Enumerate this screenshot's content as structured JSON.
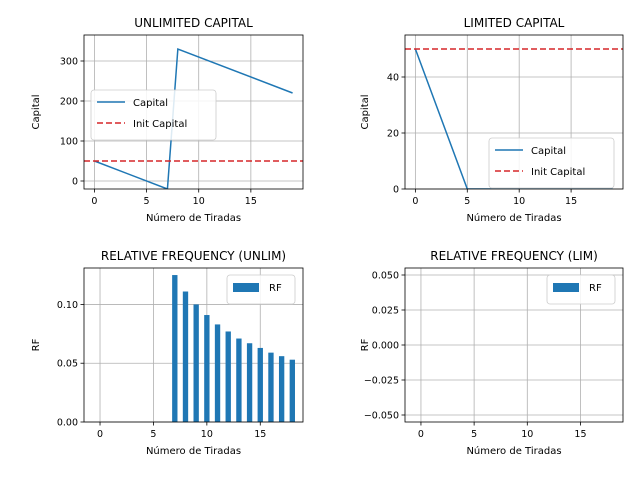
{
  "chart_data": [
    {
      "type": "line",
      "title": "UNLIMITED CAPITAL",
      "xlabel": "Número de Tiradas",
      "ylabel": "Capital",
      "xlim": [
        -1,
        20
      ],
      "ylim": [
        -20,
        365
      ],
      "xticks": [
        "0",
        "5",
        "10",
        "15"
      ],
      "yticks": [
        "0",
        "100",
        "200",
        "300"
      ],
      "grid": true,
      "legend_position": "center-left",
      "series": [
        {
          "name": "Capital",
          "color": "#1f77b4",
          "style": "solid",
          "x": [
            0,
            7,
            8,
            19
          ],
          "y": [
            50,
            -20,
            330,
            220
          ]
        },
        {
          "name": "Init Capital",
          "color": "#d62728",
          "style": "dashed",
          "hline": 50
        }
      ]
    },
    {
      "type": "line",
      "title": "LIMITED CAPITAL",
      "xlabel": "Número de Tiradas",
      "ylabel": "Capital",
      "xlim": [
        -1,
        20
      ],
      "ylim": [
        0,
        55
      ],
      "xticks": [
        "0",
        "5",
        "10",
        "15"
      ],
      "yticks": [
        "0",
        "20",
        "40"
      ],
      "grid": true,
      "legend_position": "lower-right",
      "series": [
        {
          "name": "Capital",
          "color": "#1f77b4",
          "style": "solid",
          "x": [
            0,
            5,
            19
          ],
          "y": [
            50,
            0,
            0
          ]
        },
        {
          "name": "Init Capital",
          "color": "#d62728",
          "style": "dashed",
          "hline": 50
        }
      ]
    },
    {
      "type": "bar",
      "title": "RELATIVE FREQUENCY (UNLIM)",
      "xlabel": "Número de Tiradas",
      "ylabel": "RF",
      "xlim": [
        -1.5,
        19
      ],
      "ylim": [
        0,
        0.131
      ],
      "xticks": [
        "0",
        "5",
        "10",
        "15"
      ],
      "yticks": [
        "0.00",
        "0.05",
        "0.10"
      ],
      "grid": true,
      "legend_position": "upper-right",
      "series": [
        {
          "name": "RF",
          "color": "#1f77b4",
          "x": [
            7,
            8,
            9,
            10,
            11,
            12,
            13,
            14,
            15,
            16,
            17,
            18
          ],
          "values": [
            0.125,
            0.111,
            0.1,
            0.091,
            0.083,
            0.077,
            0.071,
            0.067,
            0.063,
            0.059,
            0.056,
            0.053
          ]
        }
      ]
    },
    {
      "type": "bar",
      "title": "RELATIVE FREQUENCY (LIM)",
      "xlabel": "Número de Tiradas",
      "ylabel": "RF",
      "xlim": [
        -1.5,
        19
      ],
      "ylim": [
        -0.055,
        0.055
      ],
      "xticks": [
        "0",
        "5",
        "10",
        "15"
      ],
      "yticks": [
        "−0.050",
        "−0.025",
        "0.000",
        "0.025",
        "0.050"
      ],
      "grid": true,
      "legend_position": "upper-right",
      "series": [
        {
          "name": "RF",
          "color": "#1f77b4",
          "x": [],
          "values": []
        }
      ]
    }
  ]
}
